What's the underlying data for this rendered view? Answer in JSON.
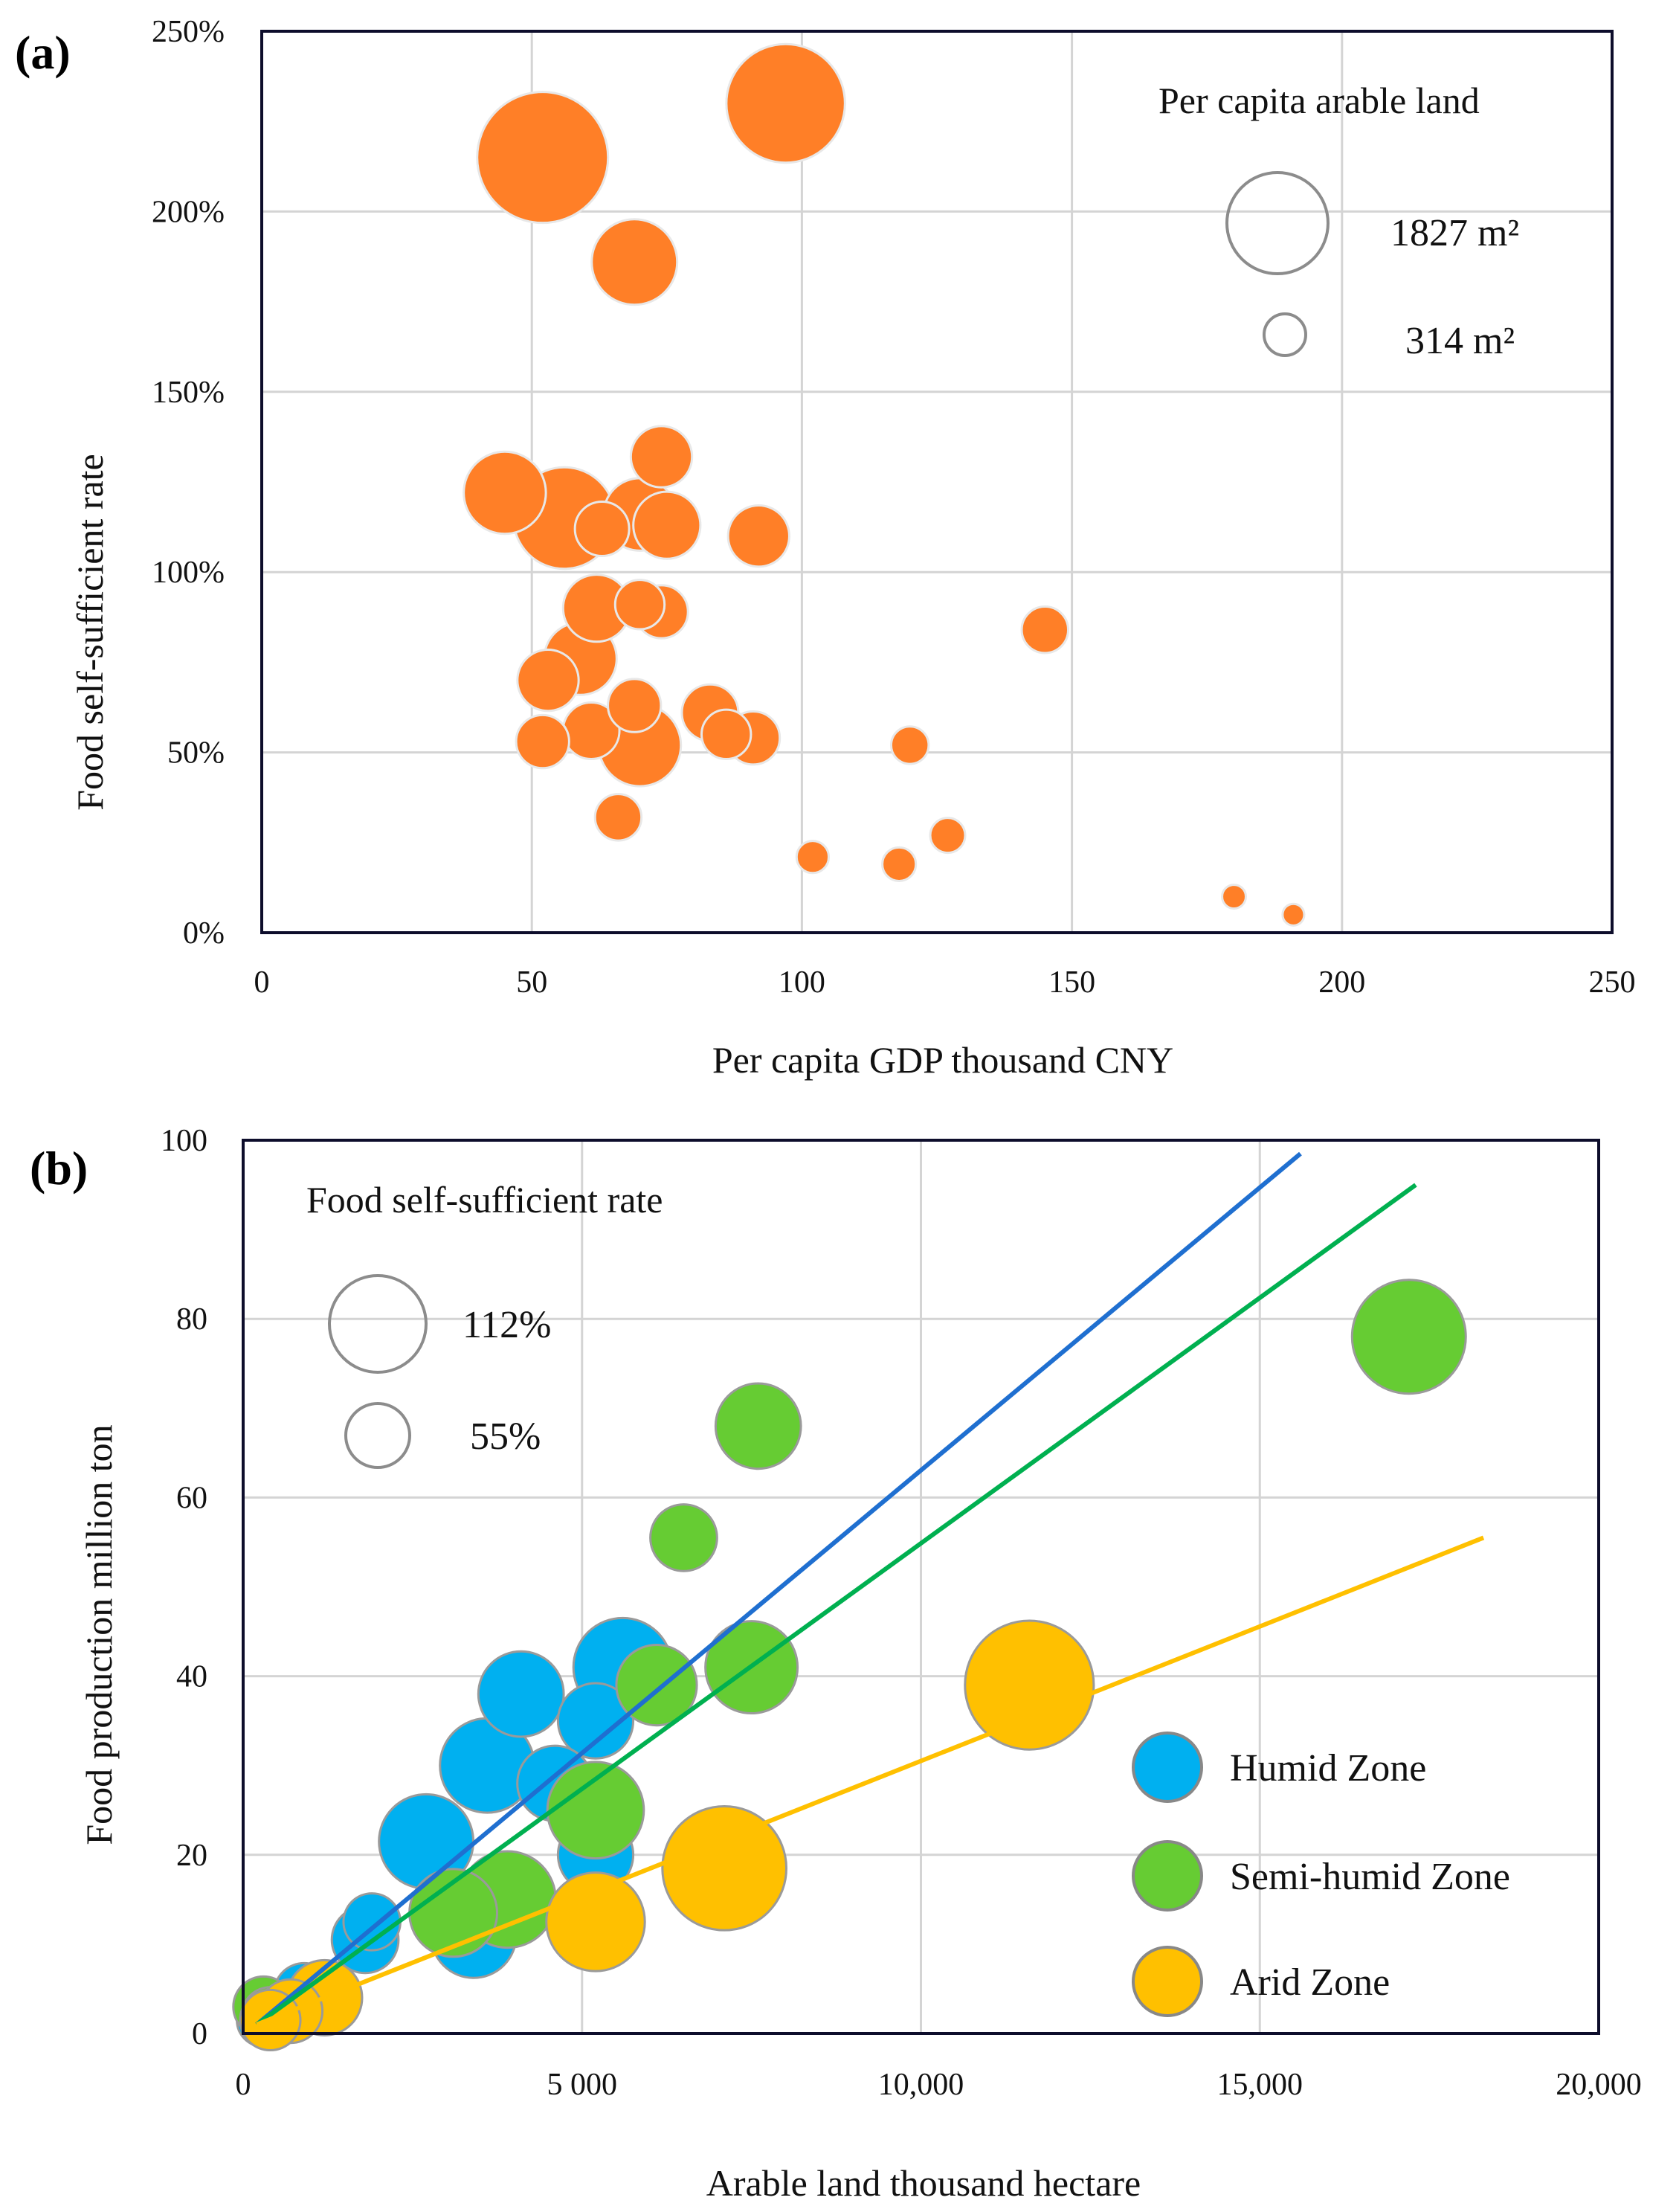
{
  "chart_data": [
    {
      "panel_label": "(a)",
      "type": "scatter",
      "xlabel": "Per capita GDP thousand CNY",
      "ylabel": "Food self-sufficient rate",
      "xlim": [
        0,
        250
      ],
      "ylim": [
        0,
        250
      ],
      "x_ticks": [
        0,
        50,
        100,
        150,
        200,
        250
      ],
      "y_ticks": [
        0,
        50,
        100,
        150,
        200,
        250
      ],
      "y_tick_labels": [
        "0%",
        "50%",
        "100%",
        "150%",
        "200%",
        "250%"
      ],
      "grid": true,
      "color": "#FF7F27",
      "size_legend": {
        "title": "Per capita arable land",
        "items": [
          {
            "label": "1827 m²",
            "size": 1827
          },
          {
            "label": "314 m²",
            "size": 314
          }
        ]
      },
      "points": [
        {
          "x": 52,
          "y": 215,
          "size": 1827
        },
        {
          "x": 97,
          "y": 230,
          "size": 1500
        },
        {
          "x": 69,
          "y": 186,
          "size": 780
        },
        {
          "x": 45,
          "y": 122,
          "size": 720
        },
        {
          "x": 56,
          "y": 115,
          "size": 1100
        },
        {
          "x": 63,
          "y": 112,
          "size": 314
        },
        {
          "x": 70,
          "y": 116,
          "size": 560
        },
        {
          "x": 75,
          "y": 113,
          "size": 480
        },
        {
          "x": 74,
          "y": 132,
          "size": 400
        },
        {
          "x": 92,
          "y": 110,
          "size": 400
        },
        {
          "x": 62,
          "y": 90,
          "size": 480
        },
        {
          "x": 70,
          "y": 91,
          "size": 260
        },
        {
          "x": 74,
          "y": 89,
          "size": 300
        },
        {
          "x": 53,
          "y": 70,
          "size": 400
        },
        {
          "x": 59,
          "y": 76,
          "size": 560
        },
        {
          "x": 69,
          "y": 63,
          "size": 300
        },
        {
          "x": 52,
          "y": 53,
          "size": 300
        },
        {
          "x": 61,
          "y": 56,
          "size": 340
        },
        {
          "x": 70,
          "y": 52,
          "size": 720
        },
        {
          "x": 83,
          "y": 61,
          "size": 340
        },
        {
          "x": 86,
          "y": 55,
          "size": 260
        },
        {
          "x": 91,
          "y": 54,
          "size": 300
        },
        {
          "x": 66,
          "y": 32,
          "size": 230
        },
        {
          "x": 120,
          "y": 52,
          "size": 150
        },
        {
          "x": 145,
          "y": 84,
          "size": 230
        },
        {
          "x": 102,
          "y": 21,
          "size": 110
        },
        {
          "x": 118,
          "y": 19,
          "size": 120
        },
        {
          "x": 127,
          "y": 27,
          "size": 130
        },
        {
          "x": 180,
          "y": 10,
          "size": 60
        },
        {
          "x": 191,
          "y": 5,
          "size": 50
        }
      ]
    },
    {
      "panel_label": "(b)",
      "type": "scatter",
      "xlabel": "Arable  land thousand hectare",
      "ylabel": "Food production million ton",
      "xlim": [
        0,
        20000
      ],
      "ylim": [
        0,
        100
      ],
      "x_ticks": [
        0,
        5000,
        10000,
        15000,
        20000
      ],
      "x_tick_labels": [
        "0",
        "5 000",
        "10,000",
        "15,000",
        "20,000"
      ],
      "y_ticks": [
        0,
        20,
        40,
        60,
        80,
        100
      ],
      "y_tick_labels": [
        "0",
        "20",
        "40",
        "60",
        "80",
        "100"
      ],
      "grid": true,
      "size_legend": {
        "title": "Food self-sufficient rate",
        "items": [
          {
            "label": "112%",
            "rate": 112
          },
          {
            "label": "55%",
            "rate": 55
          }
        ]
      },
      "series": [
        {
          "name": "Humid Zone",
          "color": "#00B0F0",
          "points": [
            {
              "x": 5600,
              "y": 41,
              "rate": 120
            },
            {
              "x": 4100,
              "y": 38,
              "rate": 90
            },
            {
              "x": 5200,
              "y": 35,
              "rate": 70
            },
            {
              "x": 3600,
              "y": 30,
              "rate": 110
            },
            {
              "x": 4600,
              "y": 28,
              "rate": 70
            },
            {
              "x": 2700,
              "y": 21.5,
              "rate": 110
            },
            {
              "x": 5200,
              "y": 20,
              "rate": 70
            },
            {
              "x": 3400,
              "y": 11,
              "rate": 90
            },
            {
              "x": 1900,
              "y": 12.5,
              "rate": 40
            },
            {
              "x": 1800,
              "y": 10.5,
              "rate": 55
            },
            {
              "x": 900,
              "y": 4.5,
              "rate": 45
            },
            {
              "x": 1100,
              "y": 3.5,
              "rate": 40
            },
            {
              "x": 300,
              "y": 1.5,
              "rate": 35
            }
          ]
        },
        {
          "name": "Semi-humid Zone",
          "color": "#66CC33",
          "points": [
            {
              "x": 17200,
              "y": 78,
              "rate": 160
            },
            {
              "x": 7600,
              "y": 68,
              "rate": 90
            },
            {
              "x": 6500,
              "y": 55.5,
              "rate": 55
            },
            {
              "x": 7500,
              "y": 41,
              "rate": 105
            },
            {
              "x": 6100,
              "y": 39,
              "rate": 80
            },
            {
              "x": 5200,
              "y": 25,
              "rate": 115
            },
            {
              "x": 3900,
              "y": 15,
              "rate": 115
            },
            {
              "x": 3100,
              "y": 13.5,
              "rate": 95
            },
            {
              "x": 300,
              "y": 3,
              "rate": 45
            },
            {
              "x": 400,
              "y": 2,
              "rate": 40
            }
          ]
        },
        {
          "name": "Arid Zone",
          "color": "#FFC000",
          "points": [
            {
              "x": 11600,
              "y": 39,
              "rate": 205
            },
            {
              "x": 7100,
              "y": 18.5,
              "rate": 190
            },
            {
              "x": 5200,
              "y": 12.5,
              "rate": 120
            },
            {
              "x": 1200,
              "y": 4,
              "rate": 70
            },
            {
              "x": 700,
              "y": 2.5,
              "rate": 50
            },
            {
              "x": 400,
              "y": 1.5,
              "rate": 45
            }
          ]
        }
      ],
      "trendlines": [
        {
          "name": "Humid Zone",
          "color": "#1F6FD0",
          "x": [
            200,
            15600
          ],
          "y": [
            1,
            98.5
          ]
        },
        {
          "name": "Semi-humid Zone",
          "color": "#00B050",
          "x": [
            200,
            17300
          ],
          "y": [
            1,
            95
          ]
        },
        {
          "name": "Arid Zone",
          "color": "#FFC000",
          "x": [
            200,
            18300
          ],
          "y": [
            1,
            55.5
          ]
        }
      ]
    }
  ]
}
